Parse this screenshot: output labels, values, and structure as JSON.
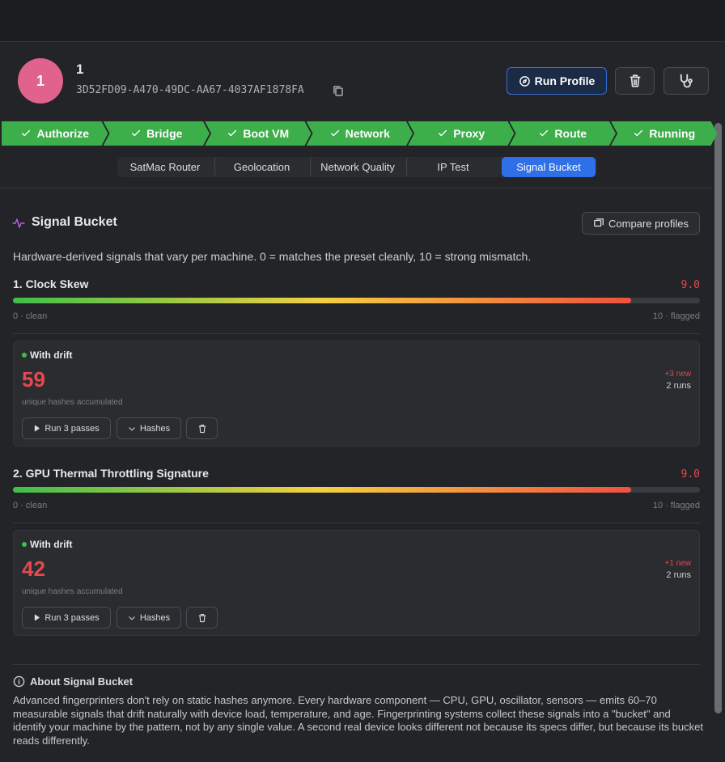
{
  "header": {
    "avatar": "1",
    "name": "1",
    "id": "3D52FD09-A470-49DC-AA67-4037AF1878FA",
    "run_button": "Run Profile"
  },
  "steps": [
    "Authorize",
    "Bridge",
    "Boot VM",
    "Network",
    "Proxy",
    "Route",
    "Running"
  ],
  "tabs": {
    "items": [
      "SatMac Router",
      "Geolocation",
      "Network Quality",
      "IP Test",
      "Signal Bucket"
    ],
    "active": 4
  },
  "section": {
    "title": "Signal Bucket",
    "compare_button": "Compare profiles",
    "description": "Hardware-derived signals that vary per machine. 0 = matches the preset cleanly, 10 = strong mismatch."
  },
  "scale": [
    0,
    10
  ],
  "scale_labels": [
    "0 · clean",
    "10 · flagged"
  ],
  "signals": [
    {
      "name": "1. Clock Skew",
      "score": 9,
      "score_label": "9.0",
      "drift": {
        "label": "With drift",
        "count": 59,
        "caption": "unique hashes accumulated",
        "new": "+3 new",
        "runs": "2 runs",
        "run_button": "Run 3 passes",
        "hashes_button": "Hashes"
      }
    },
    {
      "name": "2. GPU Thermal Throttling Signature",
      "score": 9,
      "score_label": "9.0",
      "drift": {
        "label": "With drift",
        "count": 42,
        "caption": "unique hashes accumulated",
        "new": "+1 new",
        "runs": "2 runs",
        "run_button": "Run 3 passes",
        "hashes_button": "Hashes"
      }
    }
  ],
  "about": {
    "title": "About Signal Bucket",
    "text": "Advanced fingerprinters don't rely on static hashes anymore. Every hardware component — CPU, GPU, oscillator, sensors — emits 60–70 measurable signals that drift naturally with device load, temperature, and age. Fingerprinting systems collect these signals into a \"bucket\" and identify your machine by the pattern, not by any single value. A second real device looks different not because its specs differ, but because its bucket reads differently."
  }
}
